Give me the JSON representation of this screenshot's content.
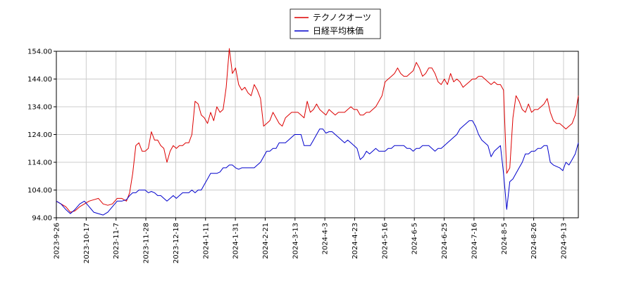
{
  "chart_data": {
    "type": "line",
    "title": "",
    "xlabel": "",
    "ylabel": "",
    "ylim": [
      94,
      154
    ],
    "y_ticks": [
      "94.00",
      "104.00",
      "114.00",
      "124.00",
      "134.00",
      "144.00",
      "154.00"
    ],
    "x_ticks": [
      "2023-9-26",
      "2023-10-17",
      "2023-11-7",
      "2023-11-28",
      "2023-12-18",
      "2024-1-11",
      "2024-1-31",
      "2024-2-21",
      "2024-3-13",
      "2024-4-3",
      "2024-4-23",
      "2024-5-16",
      "2024-6-5",
      "2024-6-25",
      "2024-7-16",
      "2024-8-5",
      "2024-8-26",
      "2024-9-13"
    ],
    "grid": true,
    "legend_position": "top-center",
    "series": [
      {
        "name": "テクノクオーツ",
        "color": "#dd0000",
        "points": [
          [
            0,
            100
          ],
          [
            3,
            99
          ],
          [
            6,
            98
          ],
          [
            9,
            96
          ],
          [
            12,
            96.5
          ],
          [
            15,
            98
          ],
          [
            18,
            99
          ],
          [
            21,
            100
          ],
          [
            24,
            100.5
          ],
          [
            27,
            101
          ],
          [
            30,
            99
          ],
          [
            33,
            98.5
          ],
          [
            36,
            99
          ],
          [
            39,
            101
          ],
          [
            42,
            101
          ],
          [
            45,
            100
          ],
          [
            47,
            103
          ],
          [
            49,
            110
          ],
          [
            51,
            120
          ],
          [
            53,
            121
          ],
          [
            55,
            118
          ],
          [
            57,
            118
          ],
          [
            59,
            119
          ],
          [
            61,
            125
          ],
          [
            63,
            122
          ],
          [
            65,
            122
          ],
          [
            67,
            120
          ],
          [
            69,
            119
          ],
          [
            71,
            114
          ],
          [
            73,
            118
          ],
          [
            75,
            120
          ],
          [
            77,
            119
          ],
          [
            79,
            120
          ],
          [
            81,
            120
          ],
          [
            83,
            121
          ],
          [
            85,
            121
          ],
          [
            87,
            124
          ],
          [
            89,
            136
          ],
          [
            91,
            135
          ],
          [
            93,
            131
          ],
          [
            95,
            130
          ],
          [
            97,
            128
          ],
          [
            99,
            132
          ],
          [
            101,
            129
          ],
          [
            103,
            134
          ],
          [
            105,
            132
          ],
          [
            107,
            133
          ],
          [
            109,
            141
          ],
          [
            111,
            155
          ],
          [
            113,
            146
          ],
          [
            115,
            148
          ],
          [
            117,
            142
          ],
          [
            119,
            140
          ],
          [
            121,
            141
          ],
          [
            123,
            139
          ],
          [
            125,
            138
          ],
          [
            127,
            142
          ],
          [
            129,
            140
          ],
          [
            131,
            137
          ],
          [
            133,
            127
          ],
          [
            135,
            128
          ],
          [
            137,
            129
          ],
          [
            139,
            132
          ],
          [
            141,
            130
          ],
          [
            143,
            128
          ],
          [
            145,
            127
          ],
          [
            147,
            130
          ],
          [
            149,
            131
          ],
          [
            151,
            132
          ],
          [
            153,
            132
          ],
          [
            155,
            132
          ],
          [
            157,
            131
          ],
          [
            159,
            130
          ],
          [
            161,
            136
          ],
          [
            163,
            132
          ],
          [
            165,
            133
          ],
          [
            167,
            135
          ],
          [
            169,
            133
          ],
          [
            171,
            132
          ],
          [
            173,
            131
          ],
          [
            175,
            133
          ],
          [
            177,
            132
          ],
          [
            179,
            131
          ],
          [
            181,
            132
          ],
          [
            183,
            132
          ],
          [
            185,
            132
          ],
          [
            187,
            133
          ],
          [
            189,
            134
          ],
          [
            191,
            133
          ],
          [
            193,
            133
          ],
          [
            195,
            131
          ],
          [
            197,
            131
          ],
          [
            199,
            132
          ],
          [
            201,
            132
          ],
          [
            203,
            133
          ],
          [
            205,
            134
          ],
          [
            207,
            136
          ],
          [
            209,
            138
          ],
          [
            211,
            143
          ],
          [
            213,
            144
          ],
          [
            215,
            145
          ],
          [
            217,
            146
          ],
          [
            219,
            148
          ],
          [
            221,
            146
          ],
          [
            223,
            145
          ],
          [
            225,
            145
          ],
          [
            227,
            146
          ],
          [
            229,
            147
          ],
          [
            231,
            150
          ],
          [
            233,
            148
          ],
          [
            235,
            145
          ],
          [
            237,
            146
          ],
          [
            239,
            148
          ],
          [
            241,
            148
          ],
          [
            243,
            146
          ],
          [
            245,
            143
          ],
          [
            247,
            142
          ],
          [
            249,
            144
          ],
          [
            251,
            142
          ],
          [
            253,
            146
          ],
          [
            255,
            143
          ],
          [
            257,
            144
          ],
          [
            259,
            143
          ],
          [
            261,
            141
          ],
          [
            263,
            142
          ],
          [
            265,
            143
          ],
          [
            267,
            144
          ],
          [
            269,
            144
          ],
          [
            271,
            145
          ],
          [
            273,
            145
          ],
          [
            275,
            144
          ],
          [
            277,
            143
          ],
          [
            279,
            142
          ],
          [
            281,
            143
          ],
          [
            283,
            142
          ],
          [
            285,
            142
          ],
          [
            287,
            140
          ],
          [
            289,
            110
          ],
          [
            291,
            112
          ],
          [
            293,
            130
          ],
          [
            295,
            138
          ],
          [
            297,
            136
          ],
          [
            299,
            133
          ],
          [
            301,
            132
          ],
          [
            303,
            135
          ],
          [
            305,
            132
          ],
          [
            307,
            133
          ],
          [
            309,
            133
          ],
          [
            311,
            134
          ],
          [
            313,
            135
          ],
          [
            315,
            137
          ],
          [
            317,
            132
          ],
          [
            319,
            129
          ],
          [
            321,
            128
          ],
          [
            323,
            128
          ],
          [
            325,
            127
          ],
          [
            327,
            126
          ],
          [
            329,
            127
          ],
          [
            331,
            128
          ],
          [
            333,
            131
          ],
          [
            335,
            138
          ]
        ]
      },
      {
        "name": "日経平均株価",
        "color": "#0000cc",
        "points": [
          [
            0,
            100
          ],
          [
            3,
            99
          ],
          [
            6,
            97
          ],
          [
            9,
            95.5
          ],
          [
            12,
            97
          ],
          [
            15,
            99
          ],
          [
            18,
            100
          ],
          [
            21,
            98
          ],
          [
            24,
            96
          ],
          [
            27,
            95.5
          ],
          [
            30,
            95
          ],
          [
            33,
            96
          ],
          [
            36,
            98
          ],
          [
            39,
            100
          ],
          [
            42,
            100
          ],
          [
            45,
            100.5
          ],
          [
            47,
            102
          ],
          [
            49,
            103
          ],
          [
            51,
            103
          ],
          [
            53,
            104
          ],
          [
            55,
            104
          ],
          [
            57,
            104
          ],
          [
            59,
            103
          ],
          [
            61,
            103.5
          ],
          [
            63,
            103
          ],
          [
            65,
            102
          ],
          [
            67,
            102
          ],
          [
            69,
            101
          ],
          [
            71,
            100
          ],
          [
            73,
            101
          ],
          [
            75,
            102
          ],
          [
            77,
            101
          ],
          [
            79,
            102
          ],
          [
            81,
            103
          ],
          [
            83,
            103
          ],
          [
            85,
            103
          ],
          [
            87,
            104
          ],
          [
            89,
            103
          ],
          [
            91,
            104
          ],
          [
            93,
            104
          ],
          [
            95,
            106
          ],
          [
            97,
            108
          ],
          [
            99,
            110
          ],
          [
            101,
            110
          ],
          [
            103,
            110
          ],
          [
            105,
            110.5
          ],
          [
            107,
            112
          ],
          [
            109,
            112
          ],
          [
            111,
            113
          ],
          [
            113,
            113
          ],
          [
            115,
            112
          ],
          [
            117,
            111.5
          ],
          [
            119,
            112
          ],
          [
            121,
            112
          ],
          [
            123,
            112
          ],
          [
            125,
            112
          ],
          [
            127,
            112
          ],
          [
            129,
            113
          ],
          [
            131,
            114
          ],
          [
            133,
            116
          ],
          [
            135,
            118
          ],
          [
            137,
            118
          ],
          [
            139,
            119
          ],
          [
            141,
            119
          ],
          [
            143,
            121
          ],
          [
            145,
            121
          ],
          [
            147,
            121
          ],
          [
            149,
            122
          ],
          [
            151,
            123
          ],
          [
            153,
            124
          ],
          [
            155,
            124
          ],
          [
            157,
            124
          ],
          [
            159,
            120
          ],
          [
            161,
            120
          ],
          [
            163,
            120
          ],
          [
            165,
            122
          ],
          [
            167,
            124
          ],
          [
            169,
            126
          ],
          [
            171,
            126
          ],
          [
            173,
            124.5
          ],
          [
            175,
            125
          ],
          [
            177,
            125
          ],
          [
            179,
            124
          ],
          [
            181,
            123
          ],
          [
            183,
            122
          ],
          [
            185,
            121
          ],
          [
            187,
            122
          ],
          [
            189,
            121
          ],
          [
            191,
            120
          ],
          [
            193,
            119
          ],
          [
            195,
            115
          ],
          [
            197,
            116
          ],
          [
            199,
            118
          ],
          [
            201,
            117
          ],
          [
            203,
            118
          ],
          [
            205,
            119
          ],
          [
            207,
            118
          ],
          [
            209,
            118
          ],
          [
            211,
            118
          ],
          [
            213,
            119
          ],
          [
            215,
            119
          ],
          [
            217,
            120
          ],
          [
            219,
            120
          ],
          [
            221,
            120
          ],
          [
            223,
            120
          ],
          [
            225,
            119
          ],
          [
            227,
            119
          ],
          [
            229,
            118
          ],
          [
            231,
            119
          ],
          [
            233,
            119
          ],
          [
            235,
            120
          ],
          [
            237,
            120
          ],
          [
            239,
            120
          ],
          [
            241,
            119
          ],
          [
            243,
            118
          ],
          [
            245,
            119
          ],
          [
            247,
            119
          ],
          [
            249,
            120
          ],
          [
            251,
            121
          ],
          [
            253,
            122
          ],
          [
            255,
            123
          ],
          [
            257,
            124
          ],
          [
            259,
            126
          ],
          [
            261,
            127
          ],
          [
            263,
            128
          ],
          [
            265,
            129
          ],
          [
            267,
            129
          ],
          [
            269,
            127
          ],
          [
            271,
            124
          ],
          [
            273,
            122
          ],
          [
            275,
            121
          ],
          [
            277,
            120
          ],
          [
            279,
            116
          ],
          [
            281,
            118
          ],
          [
            283,
            119
          ],
          [
            285,
            120
          ],
          [
            287,
            110
          ],
          [
            289,
            97
          ],
          [
            291,
            107
          ],
          [
            293,
            108
          ],
          [
            295,
            110
          ],
          [
            297,
            112
          ],
          [
            299,
            114
          ],
          [
            301,
            117
          ],
          [
            303,
            117
          ],
          [
            305,
            118
          ],
          [
            307,
            118
          ],
          [
            309,
            119
          ],
          [
            311,
            119
          ],
          [
            313,
            120
          ],
          [
            315,
            120
          ],
          [
            317,
            114
          ],
          [
            319,
            113
          ],
          [
            321,
            112.5
          ],
          [
            323,
            112
          ],
          [
            325,
            111
          ],
          [
            327,
            114
          ],
          [
            329,
            113
          ],
          [
            331,
            115
          ],
          [
            333,
            117
          ],
          [
            335,
            121
          ]
        ]
      }
    ]
  }
}
